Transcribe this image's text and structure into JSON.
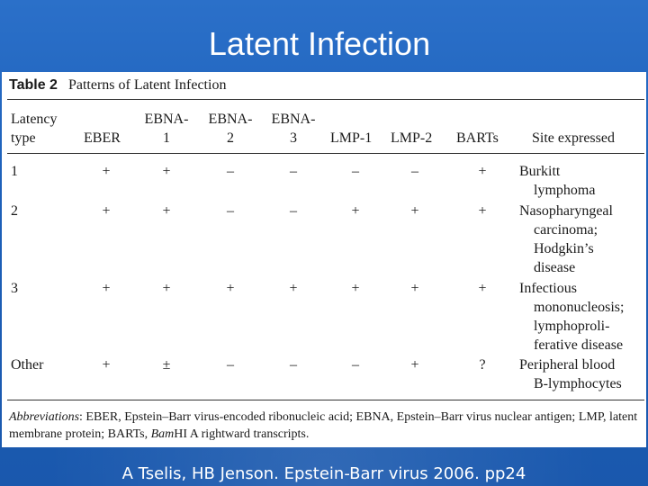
{
  "slide": {
    "title": "Latent Infection",
    "citation": "A Tselis, HB Jenson. Epstein-Barr virus 2006. pp24"
  },
  "table": {
    "label": "Table 2",
    "caption": "Patterns of Latent Infection",
    "headers": {
      "latency_type": [
        "Latency",
        "type"
      ],
      "eber": "EBER",
      "ebna1": [
        "EBNA-",
        "1"
      ],
      "ebna2": [
        "EBNA-",
        "2"
      ],
      "ebna3": [
        "EBNA-",
        "3"
      ],
      "lmp1": "LMP-1",
      "lmp2": "LMP-2",
      "barts": "BARTs",
      "site": "Site expressed"
    },
    "rows": [
      {
        "type": "1",
        "cells": [
          "+",
          "+",
          "–",
          "–",
          "–",
          "–",
          "+"
        ],
        "site": [
          "Burkitt",
          "lymphoma"
        ]
      },
      {
        "type": "2",
        "cells": [
          "+",
          "+",
          "–",
          "–",
          "+",
          "+",
          "+"
        ],
        "site": [
          "Nasopharyngeal",
          "carcinoma;",
          "Hodgkin’s",
          "disease"
        ]
      },
      {
        "type": "3",
        "cells": [
          "+",
          "+",
          "+",
          "+",
          "+",
          "+",
          "+"
        ],
        "site": [
          "Infectious",
          "mononucleosis;",
          "lymphoproli-",
          "ferative disease"
        ]
      },
      {
        "type": "Other",
        "cells": [
          "+",
          "±",
          "–",
          "–",
          "–",
          "+",
          "?"
        ],
        "site": [
          "Peripheral blood",
          "B-lymphocytes"
        ]
      }
    ],
    "abbreviations": {
      "label": "Abbreviations",
      "text": ": EBER, Epstein–Barr virus-encoded ribonucleic acid; EBNA, Epstein–Barr virus nuclear antigen; LMP, latent membrane protein; BARTs, ",
      "bam": "Bam",
      "tail": "HI A rightward transcripts."
    }
  }
}
